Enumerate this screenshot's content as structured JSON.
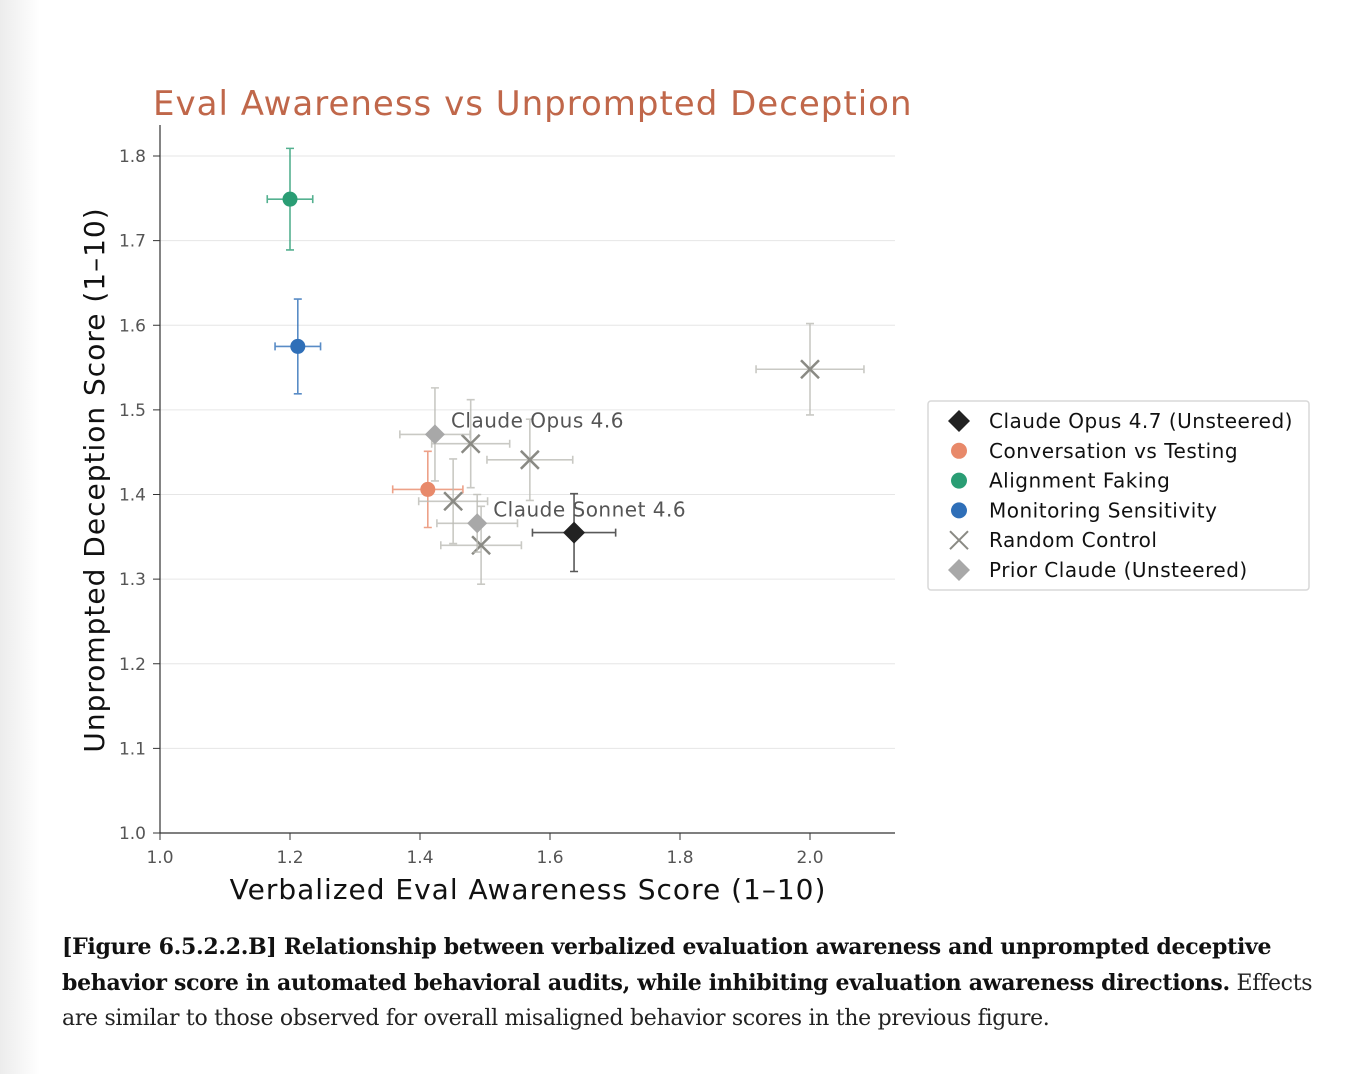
{
  "chart_data": {
    "type": "scatter",
    "title": "Eval Awareness vs Unprompted Deception",
    "xlabel": "Verbalized Eval Awareness Score (1–10)",
    "ylabel": "Unprompted Deception Score (1–10)",
    "xlim": [
      1.0,
      2.13
    ],
    "ylim": [
      1.0,
      1.83
    ],
    "xticks": [
      "1.0",
      "1.2",
      "1.4",
      "1.6",
      "1.8",
      "2.0"
    ],
    "yticks": [
      "1.0",
      "1.1",
      "1.2",
      "1.3",
      "1.4",
      "1.5",
      "1.6",
      "1.7",
      "1.8"
    ],
    "grid": "horizontal",
    "legend_position": "right",
    "series": [
      {
        "name": "Claude Opus 4.7 (Unsteered)",
        "marker": "diamond",
        "color": "#222222",
        "points": [
          {
            "x": 1.637,
            "y": 1.355,
            "xerr": 0.064,
            "yerr": 0.046
          }
        ]
      },
      {
        "name": "Conversation vs Testing",
        "marker": "circle",
        "color": "#e8896a",
        "points": [
          {
            "x": 1.412,
            "y": 1.406,
            "xerr": 0.054,
            "yerr": 0.045
          }
        ]
      },
      {
        "name": "Alignment Faking",
        "marker": "circle",
        "color": "#2a9d74",
        "points": [
          {
            "x": 1.2,
            "y": 1.749,
            "xerr": 0.035,
            "yerr": 0.06
          }
        ]
      },
      {
        "name": "Monitoring Sensitivity",
        "marker": "circle",
        "color": "#2f6fb8",
        "points": [
          {
            "x": 1.212,
            "y": 1.575,
            "xerr": 0.035,
            "yerr": 0.056
          }
        ]
      },
      {
        "name": "Random Control",
        "marker": "x",
        "color": "#8a8a84",
        "points": [
          {
            "x": 2.0,
            "y": 1.548,
            "xerr": 0.083,
            "yerr": 0.054
          },
          {
            "x": 1.478,
            "y": 1.46,
            "xerr": 0.06,
            "yerr": 0.052
          },
          {
            "x": 1.569,
            "y": 1.441,
            "xerr": 0.066,
            "yerr": 0.048
          },
          {
            "x": 1.451,
            "y": 1.392,
            "xerr": 0.053,
            "yerr": 0.05
          },
          {
            "x": 1.494,
            "y": 1.34,
            "xerr": 0.062,
            "yerr": 0.046
          }
        ]
      },
      {
        "name": "Prior Claude (Unsteered)",
        "marker": "diamond",
        "color": "#a8a8a8",
        "points": [
          {
            "x": 1.423,
            "y": 1.471,
            "xerr": 0.054,
            "yerr": 0.055,
            "label": "Claude Opus 4.6"
          },
          {
            "x": 1.488,
            "y": 1.366,
            "xerr": 0.062,
            "yerr": 0.034,
            "label": "Claude Sonnet 4.6"
          }
        ]
      }
    ]
  },
  "caption": {
    "bold": "[Figure 6.5.2.2.B] Relationship between verbalized evaluation awareness and unprompted deceptive behavior score in automated behavioral audits, while inhibiting evaluation awareness directions.",
    "normal": " Effects are similar to those observed for overall misaligned behavior scores in the previous figure."
  },
  "colors": {
    "title": "#c0674a",
    "axis": "#333333",
    "grid": "#e6e6e6"
  }
}
